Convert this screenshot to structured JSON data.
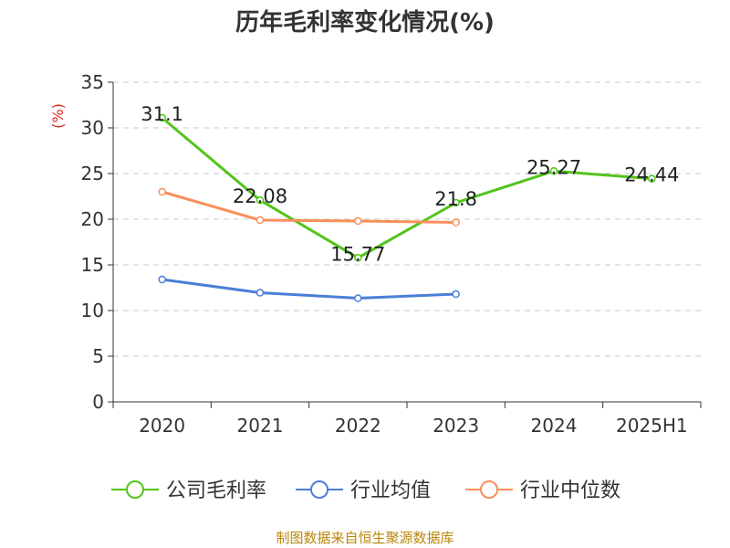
{
  "chart_data": {
    "type": "line",
    "title": "历年毛利率变化情况(%)",
    "ylabel": "(%)",
    "xlabel": "",
    "categories": [
      "2020",
      "2021",
      "2022",
      "2023",
      "2024",
      "2025H1"
    ],
    "ylim": [
      0,
      35
    ],
    "yticks": [
      0,
      5,
      10,
      15,
      20,
      25,
      30,
      35
    ],
    "grid": "horizontal dashed",
    "legend_position": "bottom",
    "series": [
      {
        "name": "公司毛利率",
        "color": "#52c41a",
        "values": [
          31.1,
          22.08,
          15.77,
          21.8,
          25.27,
          24.44
        ],
        "labels": [
          "31.1",
          "22.08",
          "15.77",
          "21.8",
          "25.27",
          "24.44"
        ]
      },
      {
        "name": "行业均值",
        "color": "#4a7fd8",
        "values": [
          13.4,
          11.95,
          11.35,
          11.8,
          null,
          null
        ]
      },
      {
        "name": "行业中位数",
        "color": "#f7905a",
        "values": [
          23.0,
          19.9,
          19.8,
          19.65,
          null,
          null
        ]
      }
    ]
  },
  "source": "制图数据来自恒生聚源数据库"
}
